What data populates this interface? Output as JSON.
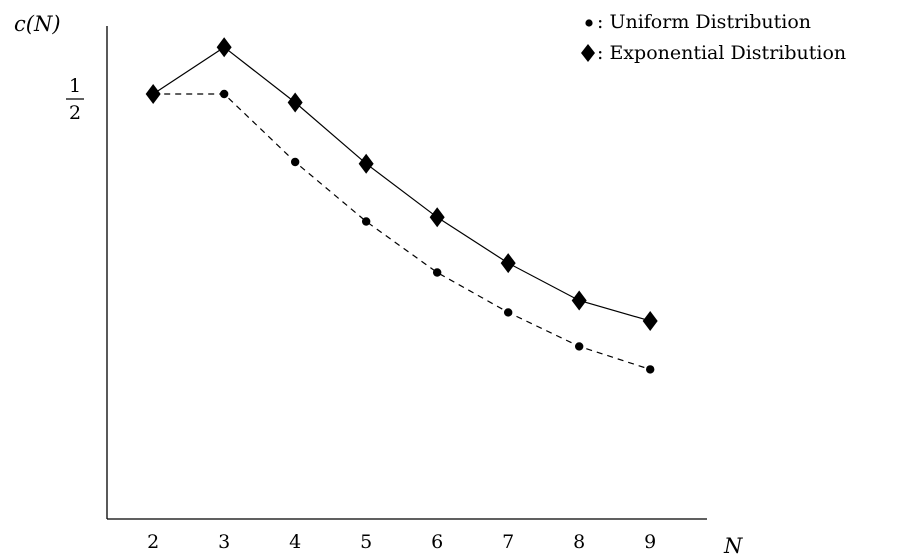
{
  "chart_data": {
    "type": "line",
    "title": "",
    "xlabel": "N",
    "ylabel": "c(N)",
    "ytick_label": {
      "value": 0.5,
      "numerator": "1",
      "denominator": "2"
    },
    "x": [
      2,
      3,
      4,
      5,
      6,
      7,
      8,
      9
    ],
    "xlim": [
      1.35,
      9.8
    ],
    "ylim": [
      0.0,
      0.58
    ],
    "grid": false,
    "legend_position": "top-right",
    "series": [
      {
        "name": ": Uniform Distribution",
        "marker": "circle",
        "line": "dashed",
        "color": "#000000",
        "values": [
          0.5,
          0.5,
          0.42,
          0.35,
          0.29,
          0.243,
          0.203,
          0.176
        ]
      },
      {
        "name": ": Exponential Distribution",
        "marker": "diamond",
        "line": "solid",
        "color": "#000000",
        "values": [
          0.5,
          0.555,
          0.49,
          0.418,
          0.355,
          0.301,
          0.257,
          0.233
        ]
      }
    ]
  }
}
